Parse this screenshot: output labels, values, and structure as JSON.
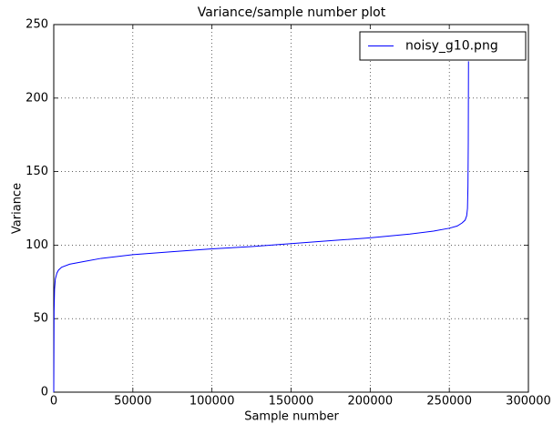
{
  "chart_data": {
    "type": "line",
    "title": "Variance/sample number plot",
    "x_label": "Sample number",
    "y_label": "Variance",
    "x": [
      0,
      200,
      500,
      1000,
      2000,
      3000,
      5000,
      10000,
      20000,
      30000,
      50000,
      75000,
      100000,
      125000,
      150000,
      175000,
      200000,
      225000,
      240000,
      250000,
      255000,
      258000,
      260000,
      261000,
      261500,
      261800,
      262000,
      262144
    ],
    "series": [
      {
        "name": "noisy_g10.png",
        "color": "#0000ff",
        "values": [
          0,
          55,
          70,
          77,
          81,
          83,
          85,
          87,
          89,
          91,
          93.5,
          95.5,
          97.5,
          99,
          101,
          103,
          105,
          107.5,
          109.5,
          111.5,
          113,
          115,
          117,
          120,
          125,
          140,
          170,
          225
        ]
      }
    ],
    "xlim": [
      0,
      300000
    ],
    "ylim": [
      0,
      250
    ],
    "xticks": [
      0,
      50000,
      100000,
      150000,
      200000,
      250000,
      300000
    ],
    "yticks": [
      0,
      50,
      100,
      150,
      200,
      250
    ],
    "grid": true,
    "legend": "upper right"
  }
}
